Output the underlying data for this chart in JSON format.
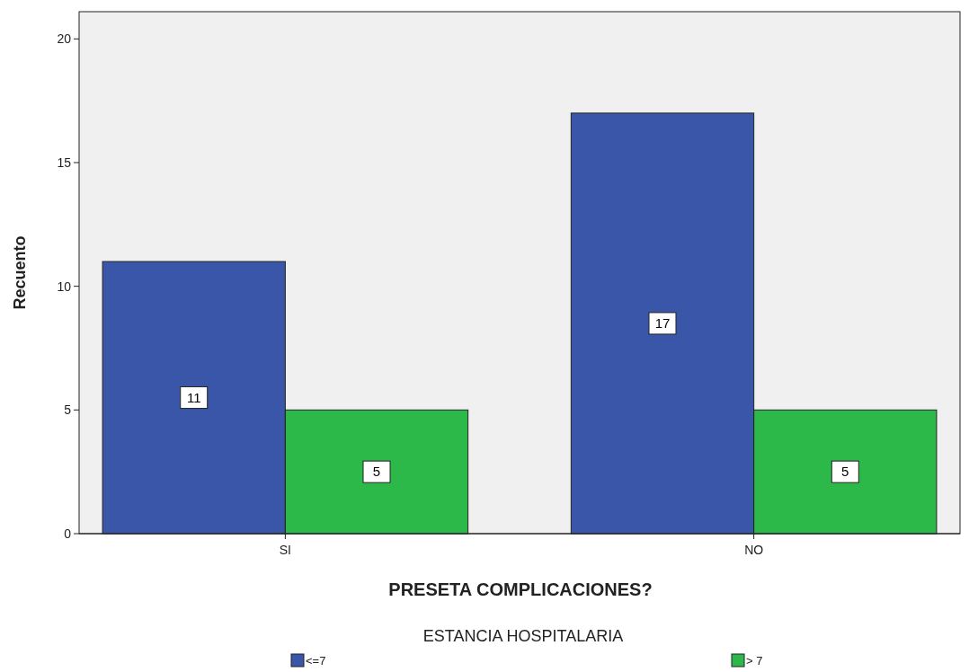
{
  "chart_data": {
    "type": "bar",
    "xlabel": "PRESETA COMPLICACIONES?",
    "ylabel": "Recuento",
    "legend_title": "ESTANCIA HOSPITALARIA",
    "categories": [
      "SI",
      "NO"
    ],
    "series": [
      {
        "name": "<=7",
        "color": "#3a56a8",
        "values": [
          11,
          17
        ]
      },
      {
        "name": "> 7",
        "color": "#2db84a",
        "values": [
          5,
          5
        ]
      }
    ],
    "ylim": [
      0,
      21.1
    ],
    "yticks": [
      0,
      5,
      10,
      15,
      20
    ],
    "grid": false,
    "legend": "bottom",
    "data_labels": true
  }
}
